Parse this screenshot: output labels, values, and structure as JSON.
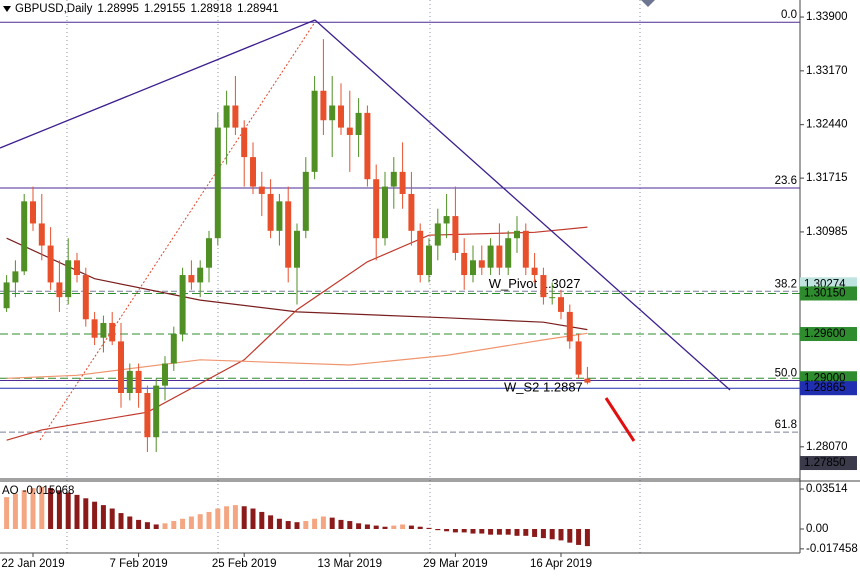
{
  "chart_data": {
    "type": "candlestick",
    "title": "GBPUSD,Daily",
    "categories": [
      null,
      null,
      null,
      "22 Jan 2019",
      null,
      null,
      null,
      null,
      null,
      null,
      null,
      null,
      null,
      null,
      null,
      "7 Feb 2019",
      null,
      null,
      null,
      null,
      null,
      null,
      null,
      null,
      null,
      null,
      null,
      "25 Feb 2019",
      null,
      null,
      null,
      null,
      null,
      null,
      null,
      null,
      null,
      null,
      null,
      "13 Mar 2019",
      null,
      null,
      null,
      null,
      null,
      null,
      null,
      null,
      null,
      null,
      null,
      "29 Mar 2019",
      null,
      null,
      null,
      null,
      null,
      null,
      null,
      null,
      null,
      null,
      null,
      "16 Apr 2019",
      null,
      null,
      null
    ],
    "open": [
      1.2995,
      1.303,
      1.3045,
      1.314,
      1.311,
      1.308,
      1.303,
      1.301,
      1.306,
      1.304,
      1.298,
      1.2955,
      1.2975,
      1.295,
      1.288,
      1.291,
      1.288,
      1.282,
      1.289,
      1.292,
      1.296,
      1.304,
      1.303,
      1.305,
      1.309,
      1.324,
      1.327,
      1.324,
      1.32,
      1.316,
      1.315,
      1.31,
      1.314,
      1.305,
      1.31,
      1.318,
      1.329,
      1.325,
      1.327,
      1.324,
      1.323,
      1.326,
      1.317,
      1.309,
      1.316,
      1.318,
      1.315,
      1.31,
      1.304,
      1.308,
      1.311,
      1.312,
      1.307,
      1.304,
      1.306,
      1.305,
      1.308,
      1.305,
      1.309,
      1.31,
      1.305,
      1.304,
      1.301,
      1.301,
      1.299,
      1.295,
      1.28995
    ],
    "high": [
      1.304,
      1.306,
      1.315,
      1.316,
      1.315,
      1.3105,
      1.306,
      1.309,
      1.307,
      1.305,
      1.299,
      1.2985,
      1.299,
      1.2975,
      1.292,
      1.292,
      1.289,
      1.29,
      1.293,
      1.297,
      1.305,
      1.306,
      1.306,
      1.31,
      1.326,
      1.329,
      1.331,
      1.325,
      1.322,
      1.318,
      1.317,
      1.315,
      1.316,
      1.311,
      1.32,
      1.331,
      1.336,
      1.331,
      1.33,
      1.329,
      1.328,
      1.327,
      1.319,
      1.318,
      1.32,
      1.322,
      1.318,
      1.311,
      1.309,
      1.313,
      1.315,
      1.316,
      1.309,
      1.308,
      1.308,
      1.309,
      1.311,
      1.31,
      1.312,
      1.311,
      1.307,
      1.305,
      1.303,
      1.302,
      1.3,
      1.296,
      1.29155
    ],
    "low": [
      1.299,
      1.301,
      1.304,
      1.31,
      1.306,
      1.302,
      1.299,
      1.3,
      1.303,
      1.297,
      1.2945,
      1.2935,
      1.2945,
      1.286,
      1.287,
      1.286,
      1.28,
      1.28,
      1.287,
      1.291,
      1.295,
      1.302,
      1.301,
      1.303,
      1.308,
      1.319,
      1.323,
      1.316,
      1.315,
      1.312,
      1.309,
      1.308,
      1.303,
      1.3,
      1.309,
      1.317,
      1.323,
      1.32,
      1.323,
      1.318,
      1.32,
      1.316,
      1.306,
      1.308,
      1.313,
      1.313,
      1.308,
      1.303,
      1.303,
      1.306,
      1.309,
      1.306,
      1.302,
      1.303,
      1.304,
      1.304,
      1.304,
      1.304,
      1.307,
      1.304,
      1.303,
      1.3,
      1.3,
      1.298,
      1.294,
      1.29,
      1.28918
    ],
    "close": [
      1.303,
      1.3045,
      1.314,
      1.311,
      1.308,
      1.303,
      1.301,
      1.306,
      1.304,
      1.298,
      1.2955,
      1.2975,
      1.295,
      1.288,
      1.291,
      1.288,
      1.282,
      1.289,
      1.292,
      1.296,
      1.304,
      1.303,
      1.305,
      1.309,
      1.324,
      1.327,
      1.324,
      1.32,
      1.316,
      1.315,
      1.31,
      1.314,
      1.305,
      1.31,
      1.318,
      1.329,
      1.325,
      1.327,
      1.324,
      1.323,
      1.326,
      1.317,
      1.309,
      1.316,
      1.318,
      1.315,
      1.31,
      1.304,
      1.308,
      1.311,
      1.312,
      1.307,
      1.304,
      1.306,
      1.305,
      1.308,
      1.305,
      1.309,
      1.31,
      1.305,
      1.304,
      1.301,
      1.301,
      1.299,
      1.295,
      1.2905,
      1.28941
    ],
    "up_color": "#4f8f23",
    "down_color": "#e8502c",
    "ylim": [
      1.27647,
      1.34131
    ],
    "yticks": [
      {
        "value": 1.339,
        "label": "1.33900"
      },
      {
        "value": 1.3317,
        "label": "1.33170"
      },
      {
        "value": 1.3244,
        "label": "1.32440"
      },
      1.31715,
      1.30985,
      {
        "value": 1.2807,
        "label": "1.28070"
      }
    ],
    "moving_averages": [
      {
        "color": "#7a1f1f",
        "x": [
          0,
          10,
          22,
          33,
          50,
          61,
          66
        ],
        "values": [
          1.309,
          1.3035,
          1.3006,
          1.299,
          1.2982,
          1.2976,
          1.2966
        ]
      },
      {
        "color": "#c0392b",
        "x": [
          0,
          4,
          16,
          27,
          33,
          41,
          48,
          60,
          66
        ],
        "values": [
          1.2816,
          1.283,
          1.2854,
          1.2925,
          1.2993,
          1.3058,
          1.3094,
          1.3098,
          1.3105
        ]
      },
      {
        "color": "#f0956e",
        "x": [
          0,
          8,
          22,
          39,
          50,
          61,
          66
        ],
        "values": [
          1.29,
          1.2904,
          1.2925,
          1.2918,
          1.2931,
          1.2952,
          1.2961
        ]
      }
    ],
    "fib_levels": [
      {
        "label": "0.0",
        "price": 1.3383,
        "dash": false
      },
      {
        "label": "23.6",
        "price": 1.3158,
        "dash": false
      },
      {
        "label": "38.2",
        "price": 1.3018,
        "dash": true
      },
      {
        "label": "50.0",
        "price": 1.2897,
        "dash": false
      },
      {
        "label": "61.8",
        "price": 1.2827,
        "dash": true
      }
    ],
    "price_levels": [
      {
        "value": 1.30274,
        "label": "1.30274",
        "color": "#bfe3df",
        "text_color": "#000000",
        "line": false
      },
      {
        "value": 1.3015,
        "label": "1.30150",
        "color": "#2e8b2e",
        "text_color": "#ffffff",
        "line": true
      },
      {
        "value": 1.296,
        "label": "1.29600",
        "color": "#2e8b2e",
        "text_color": "#ffffff",
        "line": true
      },
      {
        "value": 1.29,
        "label": "1.29000",
        "color": "#2e8b2e",
        "text_color": "#ffffff",
        "line": true
      },
      {
        "value": 1.28865,
        "label": "1.28865",
        "color": "#1f2fb0",
        "text_color": "#ffffff",
        "line": true
      },
      {
        "value": 1.2785,
        "label": "1.27850",
        "color": "#3a3a4a",
        "text_color": "#ffffff",
        "line": false
      }
    ],
    "annotations": [
      {
        "text": "W_Pivot 1.3027",
        "price": 1.3027,
        "index": 60
      },
      {
        "text": "W_S2 1.2887",
        "price": 1.2887,
        "index": 61
      }
    ],
    "ao": {
      "name": "AO",
      "values": [
        0.028,
        0.031,
        0.034,
        0.036,
        0.037,
        0.036,
        0.034,
        0.032,
        0.03,
        0.027,
        0.024,
        0.021,
        0.018,
        0.014,
        0.011,
        0.008,
        0.006,
        0.004,
        0.005,
        0.007,
        0.009,
        0.011,
        0.013,
        0.015,
        0.018,
        0.02,
        0.021,
        0.02,
        0.018,
        0.015,
        0.012,
        0.009,
        0.007,
        0.006,
        0.007,
        0.009,
        0.011,
        0.01,
        0.008,
        0.007,
        0.005,
        0.004,
        0.003,
        0.002,
        0.003,
        0.004,
        0.003,
        0.002,
        0.001,
        -0.001,
        -0.002,
        -0.003,
        -0.003,
        -0.004,
        -0.004,
        -0.005,
        -0.005,
        -0.005,
        -0.006,
        -0.006,
        -0.007,
        -0.008,
        -0.009,
        -0.01,
        -0.012,
        -0.014,
        -0.015068
      ],
      "up_color": "#f4a582",
      "down_color": "#8b1a1a",
      "ylim": [
        -0.0211,
        0.0422
      ],
      "yticks": [
        0.03514,
        {
          "value": 0,
          "label": "0.00"
        },
        -0.017458
      ]
    }
  }
}
